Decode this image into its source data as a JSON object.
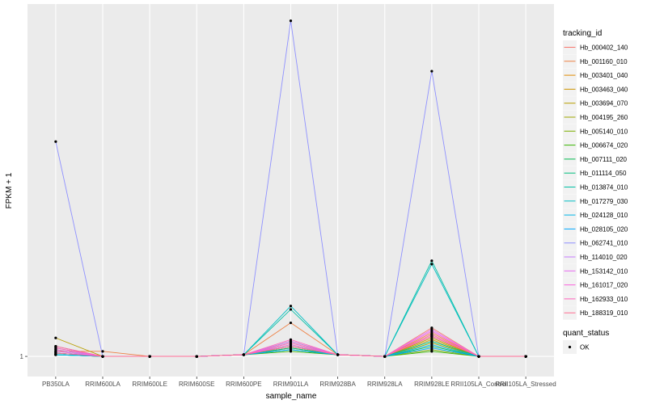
{
  "chart_data": {
    "type": "line",
    "xlabel": "sample_name",
    "ylabel": "FPKM + 1",
    "y_ticks": [
      1
    ],
    "y_tick_labels": [
      "1"
    ],
    "ylim": [
      0.88,
      3.1
    ],
    "grid": true,
    "legend_placement": "right",
    "categories": [
      "PB350LA",
      "RRIM600LA",
      "RRIM600LE",
      "RRIM600SE",
      "RRIM600PE",
      "RRIM901LA",
      "RRIM928BA",
      "RRIM928LA",
      "RRIM928LE",
      "RRII105LA_Control",
      "RRII105LA_Stressed"
    ],
    "legend_title": "tracking_id",
    "series": [
      {
        "name": "Hb_000402_140",
        "color": "#F8766D",
        "values": [
          1.03,
          1,
          1,
          1,
          1.01,
          1.05,
          1.01,
          1,
          1.17,
          1,
          1
        ]
      },
      {
        "name": "Hb_001160_010",
        "color": "#EE8044",
        "values": [
          1.03,
          1.03,
          1,
          1,
          1.01,
          1.2,
          1.01,
          1,
          1.14,
          1,
          1
        ]
      },
      {
        "name": "Hb_003401_040",
        "color": "#E08B00",
        "values": [
          1.04,
          1,
          1,
          1,
          1.01,
          1.08,
          1.01,
          1,
          1.12,
          1,
          1
        ]
      },
      {
        "name": "Hb_003463_040",
        "color": "#CF9400",
        "values": [
          1.05,
          1,
          1,
          1,
          1.01,
          1.06,
          1.01,
          1,
          1.1,
          1,
          1
        ]
      },
      {
        "name": "Hb_003694_070",
        "color": "#B89E00",
        "values": [
          1.11,
          1,
          1,
          1,
          1.01,
          1.09,
          1.01,
          1,
          1.11,
          1,
          1
        ]
      },
      {
        "name": "Hb_004195_260",
        "color": "#9EA700",
        "values": [
          1.06,
          1,
          1,
          1,
          1.01,
          1.07,
          1.01,
          1,
          1.08,
          1,
          1
        ]
      },
      {
        "name": "Hb_005140_010",
        "color": "#7CAE00",
        "values": [
          1.02,
          1,
          1,
          1,
          1.01,
          1.05,
          1.01,
          1,
          1.04,
          1,
          1
        ]
      },
      {
        "name": "Hb_006674_020",
        "color": "#39B600",
        "values": [
          1.01,
          1,
          1,
          1,
          1.01,
          1.03,
          1.01,
          1,
          1.03,
          1,
          1
        ]
      },
      {
        "name": "Hb_007111_020",
        "color": "#00BB4E",
        "values": [
          1.01,
          1,
          1,
          1,
          1.01,
          1.04,
          1.01,
          1,
          1.06,
          1,
          1
        ]
      },
      {
        "name": "Hb_011114_050",
        "color": "#00BF7D",
        "values": [
          1.02,
          1,
          1,
          1,
          1.01,
          1.05,
          1.01,
          1,
          1.09,
          1,
          1
        ]
      },
      {
        "name": "Hb_013874_010",
        "color": "#00C0A4",
        "values": [
          1.01,
          1,
          1,
          1,
          1.01,
          1.28,
          1.01,
          1,
          1.57,
          1,
          1
        ]
      },
      {
        "name": "Hb_017279_030",
        "color": "#00BFC4",
        "values": [
          1.01,
          1,
          1,
          1,
          1.01,
          1.3,
          1.01,
          1,
          1.55,
          1,
          1
        ]
      },
      {
        "name": "Hb_024128_010",
        "color": "#00B7E8",
        "values": [
          1.01,
          1,
          1,
          1,
          1.01,
          1.06,
          1.01,
          1,
          1.07,
          1,
          1
        ]
      },
      {
        "name": "Hb_028105_020",
        "color": "#00A9FF",
        "values": [
          1.02,
          1,
          1,
          1,
          1.01,
          1.04,
          1.01,
          1,
          1.05,
          1,
          1
        ]
      },
      {
        "name": "Hb_062741_010",
        "color": "#8F91FF",
        "values": [
          2.28,
          1,
          1,
          1,
          1.01,
          3.0,
          1.01,
          1,
          2.7,
          1,
          1
        ]
      },
      {
        "name": "Hb_114010_020",
        "color": "#C77CFF",
        "values": [
          1.04,
          1,
          1,
          1,
          1.01,
          1.09,
          1.01,
          1,
          1.13,
          1,
          1
        ]
      },
      {
        "name": "Hb_153142_010",
        "color": "#E76BF3",
        "values": [
          1.03,
          1,
          1,
          1,
          1.01,
          1.07,
          1.01,
          1,
          1.16,
          1,
          1
        ]
      },
      {
        "name": "Hb_161017_020",
        "color": "#FA62DB",
        "values": [
          1.05,
          1,
          1,
          1,
          1.01,
          1.08,
          1.01,
          1,
          1.15,
          1,
          1
        ]
      },
      {
        "name": "Hb_162933_010",
        "color": "#FF62BC",
        "values": [
          1.06,
          1,
          1,
          1,
          1.01,
          1.1,
          1.01,
          1,
          1.12,
          1,
          1
        ]
      },
      {
        "name": "Hb_188319_010",
        "color": "#FF6C91",
        "values": [
          1.02,
          1,
          1,
          1,
          1.01,
          1.06,
          1.01,
          1,
          1.13,
          1,
          1
        ]
      }
    ],
    "point_legend_title": "quant_status",
    "point_legend_label": "OK"
  }
}
